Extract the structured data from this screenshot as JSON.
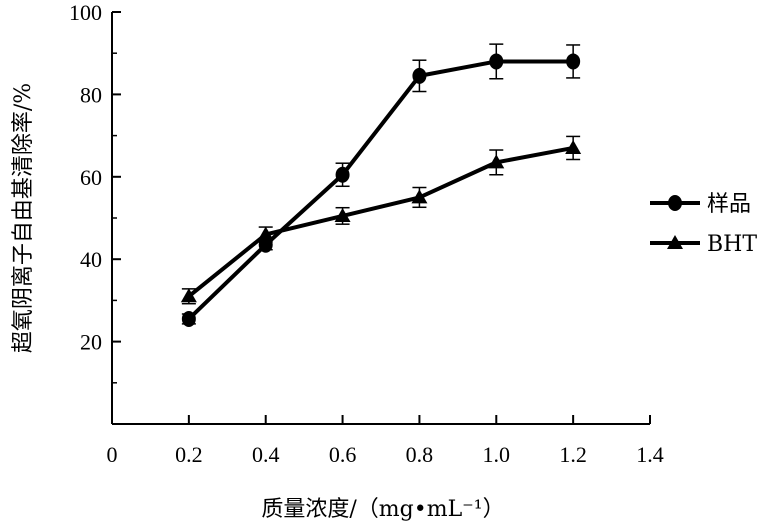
{
  "chart_data": {
    "type": "line",
    "title": "",
    "xlabel": "质量浓度/（mg•mL⁻¹）",
    "ylabel": "超氧阴离子自由基清除率/%",
    "xlim": [
      0,
      1.4
    ],
    "ylim": [
      0,
      100
    ],
    "x_ticks": [
      "0",
      "0.2",
      "0.4",
      "0.6",
      "0.8",
      "1.0",
      "1.2",
      "1.4"
    ],
    "y_ticks": [
      "20",
      "40",
      "60",
      "80",
      "100"
    ],
    "grid": false,
    "legend_position": "right",
    "series": [
      {
        "name": "样品",
        "marker": "circle",
        "color": "#000000",
        "x": [
          0.2,
          0.4,
          0.6,
          0.8,
          1.0,
          1.2
        ],
        "y": [
          25.5,
          43.5,
          60.5,
          84.5,
          88.0,
          88.0
        ],
        "error": [
          1.2,
          1.2,
          2.8,
          3.8,
          4.2,
          4.0
        ]
      },
      {
        "name": "BHT",
        "marker": "triangle",
        "color": "#000000",
        "x": [
          0.2,
          0.4,
          0.6,
          0.8,
          1.0,
          1.2
        ],
        "y": [
          31.0,
          46.0,
          50.5,
          55.0,
          63.5,
          67.0
        ],
        "error": [
          1.8,
          1.8,
          2.0,
          2.4,
          3.0,
          2.8
        ]
      }
    ]
  }
}
